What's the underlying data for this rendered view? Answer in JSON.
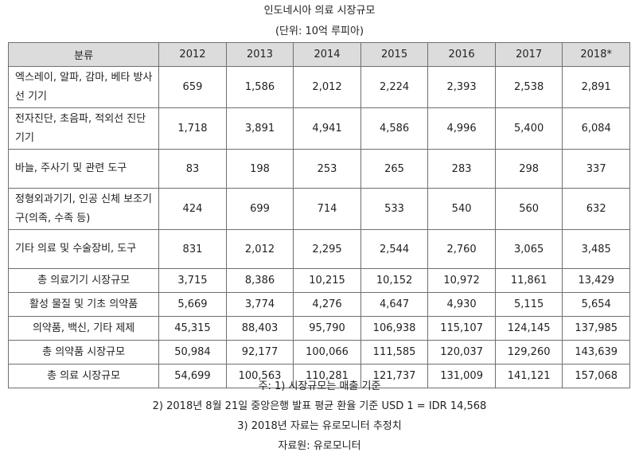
{
  "title": "인도네시아 의료 시장규모",
  "unit": "(단위: 10억 루피아)",
  "table": {
    "header": [
      "분류",
      "2012",
      "2013",
      "2014",
      "2015",
      "2016",
      "2017",
      "2018*"
    ],
    "rows": [
      {
        "label": "엑스레이, 알파, 감마, 베타 방사선 기기",
        "values": [
          "659",
          "1,586",
          "2,012",
          "2,224",
          "2,393",
          "2,538",
          "2,891"
        ]
      },
      {
        "label": "전자진단, 초음파, 적외선 진단 기기",
        "values": [
          "1,718",
          "3,891",
          "4,941",
          "4,586",
          "4,996",
          "5,400",
          "6,084"
        ]
      },
      {
        "label": "바늘, 주사기 및 관련 도구",
        "values": [
          "83",
          "198",
          "253",
          "265",
          "283",
          "298",
          "337"
        ]
      },
      {
        "label": "정형외과기기, 인공 신체 보조기구(의족, 수족 등)",
        "values": [
          "424",
          "699",
          "714",
          "533",
          "540",
          "560",
          "632"
        ]
      },
      {
        "label": "기타 의료 및 수술장비, 도구",
        "values": [
          "831",
          "2,012",
          "2,295",
          "2,544",
          "2,760",
          "3,065",
          "3,485"
        ]
      },
      {
        "label": "총 의료기기 시장규모",
        "values": [
          "3,715",
          "8,386",
          "10,215",
          "10,152",
          "10,972",
          "11,861",
          "13,429"
        ]
      },
      {
        "label": "활성 물질 및 기초 의약품",
        "values": [
          "5,669",
          "3,774",
          "4,276",
          "4,647",
          "4,930",
          "5,115",
          "5,654"
        ]
      },
      {
        "label": "의약품, 백신, 기타 제제",
        "values": [
          "45,315",
          "88,403",
          "95,790",
          "106,938",
          "115,107",
          "124,145",
          "137,985"
        ]
      },
      {
        "label": "총 의약품 시장규모",
        "values": [
          "50,984",
          "92,177",
          "100,066",
          "111,585",
          "120,037",
          "129,260",
          "143,639"
        ]
      },
      {
        "label": "총 의료 시장규모",
        "values": [
          "54,699",
          "100,563",
          "110,281",
          "121,737",
          "131,009",
          "141,121",
          "157,068"
        ]
      }
    ]
  },
  "notes": [
    "주: 1) 시장규모는 매출 기준",
    "2) 2018년 8월 21일 중앙은행 발표 평균 환율 기준 USD 1 = IDR 14,568",
    "3) 2018년 자료는 유로모니터 추정치",
    "자료원: 유로모니터"
  ]
}
